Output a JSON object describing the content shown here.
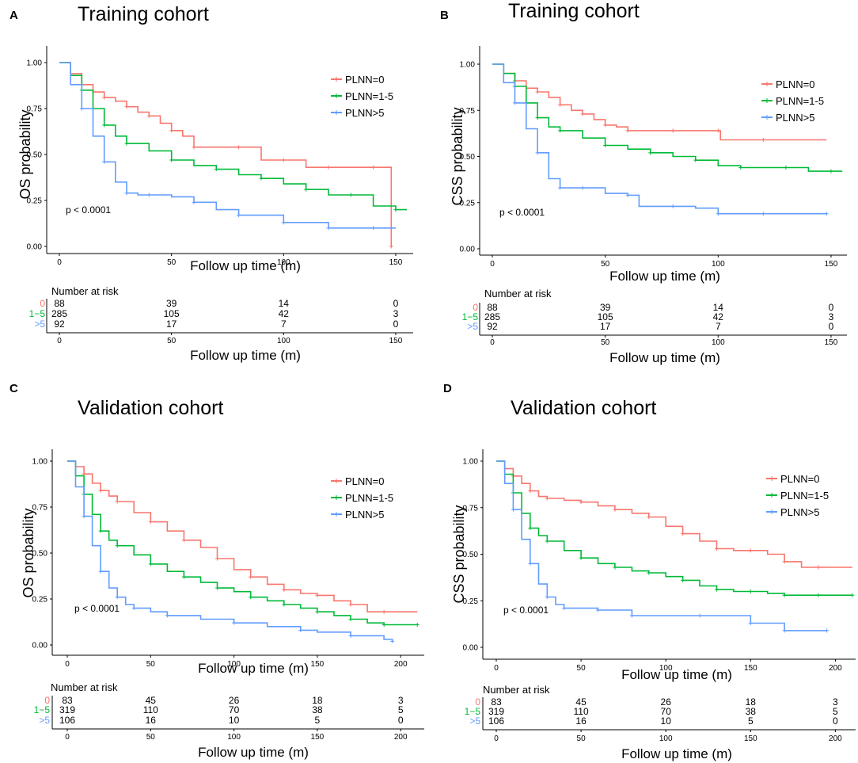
{
  "chart_data": [
    {
      "type": "line",
      "panel": "A",
      "title": "Training cohort",
      "xlabel": "Follow up time (m)",
      "ylabel": "OS probability",
      "xlim": [
        0,
        155
      ],
      "ylim": [
        0,
        1
      ],
      "xticks": [
        "0",
        "50",
        "100",
        "150"
      ],
      "yticks": [
        "0.00",
        "0.25",
        "0.50",
        "0.75",
        "1.00"
      ],
      "p_value": "p < 0.0001",
      "legend": [
        "PLNN=0",
        "PLNN=1-5",
        "PLNN>5"
      ],
      "series": [
        {
          "name": "PLNN=0",
          "color": "#f8766d",
          "x": [
            0,
            5,
            10,
            15,
            20,
            25,
            30,
            35,
            40,
            45,
            50,
            55,
            60,
            70,
            80,
            90,
            100,
            110,
            120,
            130,
            140,
            148,
            148
          ],
          "y": [
            1,
            0.94,
            0.88,
            0.84,
            0.81,
            0.79,
            0.76,
            0.73,
            0.71,
            0.67,
            0.63,
            0.6,
            0.54,
            0.54,
            0.54,
            0.47,
            0.47,
            0.43,
            0.43,
            0.43,
            0.43,
            0.43,
            0
          ]
        },
        {
          "name": "PLNN=1-5",
          "color": "#00ba38",
          "x": [
            0,
            5,
            10,
            15,
            20,
            25,
            30,
            40,
            50,
            60,
            70,
            80,
            90,
            100,
            110,
            120,
            130,
            140,
            150,
            155
          ],
          "y": [
            1,
            0.93,
            0.85,
            0.75,
            0.66,
            0.6,
            0.56,
            0.52,
            0.47,
            0.44,
            0.42,
            0.39,
            0.37,
            0.34,
            0.31,
            0.28,
            0.28,
            0.22,
            0.2,
            0.2
          ]
        },
        {
          "name": "PLNN>5",
          "color": "#619cff",
          "x": [
            0,
            5,
            10,
            15,
            20,
            25,
            30,
            35,
            40,
            50,
            60,
            70,
            80,
            90,
            100,
            110,
            120,
            130,
            140,
            150
          ],
          "y": [
            1,
            0.88,
            0.75,
            0.6,
            0.46,
            0.35,
            0.29,
            0.28,
            0.28,
            0.27,
            0.24,
            0.2,
            0.17,
            0.17,
            0.13,
            0.13,
            0.1,
            0.1,
            0.1,
            0.1
          ]
        }
      ],
      "risk_table": {
        "title": "Number at risk",
        "groups": [
          "0",
          "1−5",
          ">5"
        ],
        "times": [
          "0",
          "50",
          "100",
          "150"
        ],
        "rows": [
          [
            "88",
            "39",
            "14",
            "0"
          ],
          [
            "285",
            "105",
            "42",
            "3"
          ],
          [
            "92",
            "17",
            "7",
            "0"
          ]
        ],
        "xlabel": "Follow up time (m)"
      }
    },
    {
      "type": "line",
      "panel": "B",
      "title": "Training cohort",
      "xlabel": "Follow up time (m)",
      "ylabel": "CSS probability",
      "xlim": [
        0,
        155
      ],
      "ylim": [
        0,
        1
      ],
      "xticks": [
        "0",
        "50",
        "100",
        "150"
      ],
      "yticks": [
        "0.00",
        "0.25",
        "0.50",
        "0.75",
        "1.00"
      ],
      "p_value": "p < 0.0001",
      "legend": [
        "PLNN=0",
        "PLNN=1-5",
        "PLNN>5"
      ],
      "series": [
        {
          "name": "PLNN=0",
          "color": "#f8766d",
          "x": [
            0,
            5,
            10,
            15,
            20,
            25,
            30,
            35,
            40,
            45,
            50,
            55,
            60,
            70,
            80,
            90,
            100,
            101,
            120,
            148
          ],
          "y": [
            1,
            0.95,
            0.91,
            0.87,
            0.85,
            0.82,
            0.78,
            0.75,
            0.73,
            0.7,
            0.67,
            0.66,
            0.64,
            0.64,
            0.64,
            0.64,
            0.64,
            0.59,
            0.59,
            0.59
          ]
        },
        {
          "name": "PLNN=1-5",
          "color": "#00ba38",
          "x": [
            0,
            5,
            10,
            15,
            20,
            25,
            30,
            40,
            50,
            60,
            70,
            80,
            90,
            100,
            110,
            120,
            130,
            140,
            150,
            155
          ],
          "y": [
            1,
            0.95,
            0.88,
            0.79,
            0.71,
            0.66,
            0.64,
            0.6,
            0.56,
            0.54,
            0.52,
            0.5,
            0.48,
            0.45,
            0.44,
            0.44,
            0.44,
            0.42,
            0.42,
            0.42
          ]
        },
        {
          "name": "PLNN>5",
          "color": "#619cff",
          "x": [
            0,
            5,
            10,
            15,
            20,
            25,
            30,
            35,
            40,
            50,
            60,
            65,
            80,
            90,
            100,
            110,
            120,
            130,
            148
          ],
          "y": [
            1,
            0.9,
            0.79,
            0.65,
            0.52,
            0.38,
            0.33,
            0.33,
            0.33,
            0.3,
            0.29,
            0.23,
            0.23,
            0.22,
            0.19,
            0.19,
            0.19,
            0.19,
            0.19
          ]
        }
      ],
      "risk_table": {
        "title": "Number at risk",
        "groups": [
          "0",
          "1−5",
          ">5"
        ],
        "times": [
          "0",
          "50",
          "100",
          "150"
        ],
        "rows": [
          [
            "88",
            "39",
            "14",
            "0"
          ],
          [
            "285",
            "105",
            "42",
            "3"
          ],
          [
            "92",
            "17",
            "7",
            "0"
          ]
        ],
        "xlabel": "Follow up time (m)"
      }
    },
    {
      "type": "line",
      "panel": "C",
      "title": "Validation cohort",
      "xlabel": "Follow up time (m)",
      "ylabel": "OS probability",
      "xlim": [
        0,
        210
      ],
      "ylim": [
        0,
        1
      ],
      "xticks": [
        "0",
        "50",
        "100",
        "150",
        "200"
      ],
      "yticks": [
        "0.00",
        "0.25",
        "0.50",
        "0.75",
        "1.00"
      ],
      "p_value": "p < 0.0001",
      "legend": [
        "PLNN=0",
        "PLNN=1-5",
        "PLNN>5"
      ],
      "series": [
        {
          "name": "PLNN=0",
          "color": "#f8766d",
          "x": [
            0,
            5,
            10,
            15,
            20,
            25,
            30,
            40,
            50,
            60,
            70,
            80,
            90,
            100,
            110,
            120,
            130,
            140,
            150,
            160,
            170,
            180,
            190,
            210
          ],
          "y": [
            1,
            0.97,
            0.93,
            0.88,
            0.84,
            0.81,
            0.78,
            0.72,
            0.67,
            0.62,
            0.57,
            0.53,
            0.47,
            0.41,
            0.37,
            0.33,
            0.3,
            0.28,
            0.27,
            0.24,
            0.22,
            0.18,
            0.18,
            0.18
          ]
        },
        {
          "name": "PLNN=1-5",
          "color": "#00ba38",
          "x": [
            0,
            5,
            10,
            15,
            20,
            25,
            30,
            40,
            50,
            60,
            70,
            80,
            90,
            100,
            110,
            120,
            130,
            140,
            150,
            160,
            170,
            180,
            190,
            200,
            210
          ],
          "y": [
            1,
            0.92,
            0.82,
            0.71,
            0.62,
            0.57,
            0.54,
            0.49,
            0.44,
            0.4,
            0.37,
            0.34,
            0.31,
            0.29,
            0.26,
            0.24,
            0.22,
            0.2,
            0.18,
            0.16,
            0.14,
            0.12,
            0.11,
            0.11,
            0.11
          ]
        },
        {
          "name": "PLNN>5",
          "color": "#619cff",
          "x": [
            0,
            5,
            10,
            15,
            20,
            25,
            30,
            35,
            40,
            50,
            60,
            80,
            100,
            120,
            140,
            150,
            170,
            190,
            195
          ],
          "y": [
            1,
            0.86,
            0.7,
            0.54,
            0.4,
            0.31,
            0.26,
            0.22,
            0.2,
            0.18,
            0.16,
            0.14,
            0.12,
            0.1,
            0.08,
            0.07,
            0.05,
            0.03,
            0.02
          ]
        }
      ],
      "risk_table": {
        "title": "Number at risk",
        "groups": [
          "0",
          "1−5",
          ">5"
        ],
        "times": [
          "0",
          "50",
          "100",
          "150",
          "200"
        ],
        "rows": [
          [
            "83",
            "45",
            "26",
            "18",
            "3"
          ],
          [
            "319",
            "110",
            "70",
            "38",
            "5"
          ],
          [
            "106",
            "16",
            "10",
            "5",
            "0"
          ]
        ],
        "xlabel": "Follow up time (m)"
      }
    },
    {
      "type": "line",
      "panel": "D",
      "title": "Validation cohort",
      "xlabel": "Follow up time (m)",
      "ylabel": "CSS probability",
      "xlim": [
        0,
        210
      ],
      "ylim": [
        0,
        1
      ],
      "xticks": [
        "0",
        "50",
        "100",
        "150",
        "200"
      ],
      "yticks": [
        "0.00",
        "0.25",
        "0.50",
        "0.75",
        "1.00"
      ],
      "p_value": "p < 0.0001",
      "legend": [
        "PLNN=0",
        "PLNN=1-5",
        "PLNN>5"
      ],
      "series": [
        {
          "name": "PLNN=0",
          "color": "#f8766d",
          "x": [
            0,
            5,
            10,
            15,
            20,
            25,
            30,
            40,
            50,
            60,
            70,
            80,
            90,
            100,
            110,
            120,
            130,
            140,
            150,
            160,
            170,
            180,
            190,
            210
          ],
          "y": [
            1,
            0.96,
            0.92,
            0.88,
            0.84,
            0.81,
            0.8,
            0.79,
            0.78,
            0.76,
            0.74,
            0.72,
            0.7,
            0.65,
            0.61,
            0.57,
            0.53,
            0.52,
            0.52,
            0.5,
            0.46,
            0.43,
            0.43,
            0.43
          ]
        },
        {
          "name": "PLNN=1-5",
          "color": "#00ba38",
          "x": [
            0,
            5,
            10,
            15,
            20,
            25,
            30,
            40,
            50,
            60,
            70,
            80,
            90,
            100,
            110,
            120,
            130,
            140,
            150,
            160,
            170,
            180,
            190,
            200,
            210
          ],
          "y": [
            1,
            0.93,
            0.83,
            0.72,
            0.64,
            0.6,
            0.57,
            0.52,
            0.48,
            0.45,
            0.43,
            0.41,
            0.4,
            0.38,
            0.36,
            0.33,
            0.31,
            0.3,
            0.3,
            0.29,
            0.28,
            0.28,
            0.28,
            0.28,
            0.28
          ]
        },
        {
          "name": "PLNN>5",
          "color": "#619cff",
          "x": [
            0,
            5,
            10,
            15,
            20,
            25,
            30,
            35,
            40,
            50,
            60,
            70,
            80,
            100,
            120,
            140,
            150,
            160,
            170,
            180,
            195
          ],
          "y": [
            1,
            0.88,
            0.74,
            0.58,
            0.45,
            0.34,
            0.27,
            0.23,
            0.21,
            0.21,
            0.2,
            0.2,
            0.17,
            0.17,
            0.17,
            0.17,
            0.13,
            0.13,
            0.09,
            0.09,
            0.09
          ]
        }
      ],
      "risk_table": {
        "title": "Number at risk",
        "groups": [
          "0",
          "1−5",
          ">5"
        ],
        "times": [
          "0",
          "50",
          "100",
          "150",
          "200"
        ],
        "rows": [
          [
            "83",
            "45",
            "26",
            "18",
            "3"
          ],
          [
            "319",
            "110",
            "70",
            "38",
            "5"
          ],
          [
            "106",
            "16",
            "10",
            "5",
            "0"
          ]
        ],
        "xlabel": "Follow up time (m)"
      }
    }
  ]
}
